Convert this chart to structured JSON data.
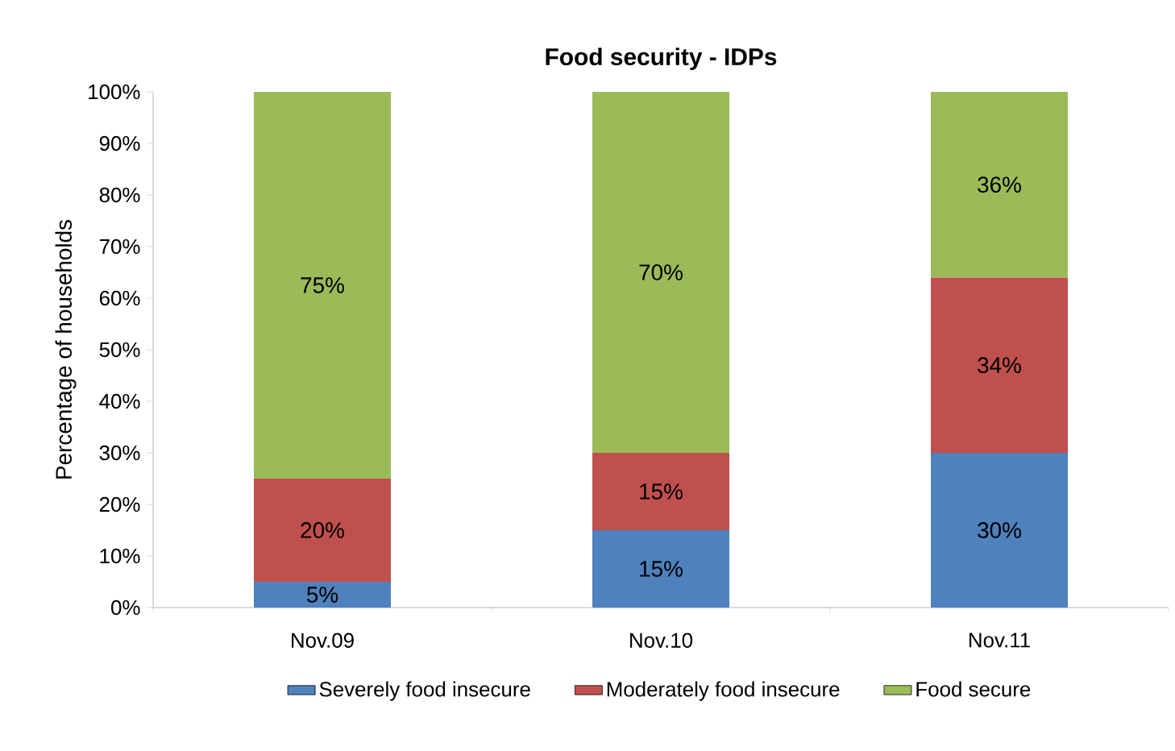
{
  "chart_data": {
    "type": "bar",
    "stacked": true,
    "title": "Food security - IDPs",
    "ylabel": "Percentage of households",
    "categories": [
      "Nov.09",
      "Nov.10",
      "Nov.11"
    ],
    "series": [
      {
        "name": "Severely food insecure",
        "color": "#4f81bd",
        "values": [
          5,
          15,
          30
        ],
        "value_labels": [
          "5%",
          "15%",
          "30%"
        ]
      },
      {
        "name": "Moderately food insecure",
        "color": "#c0504d",
        "values": [
          20,
          15,
          34
        ],
        "value_labels": [
          "20%",
          "15%",
          "34%"
        ]
      },
      {
        "name": "Food secure",
        "color": "#9bbb59",
        "values": [
          75,
          70,
          36
        ],
        "value_labels": [
          "75%",
          "70%",
          "36%"
        ]
      }
    ],
    "ylim": [
      0,
      100
    ],
    "yticks": [
      {
        "value": 0,
        "label": "0%"
      },
      {
        "value": 10,
        "label": "10%"
      },
      {
        "value": 20,
        "label": "20%"
      },
      {
        "value": 30,
        "label": "30%"
      },
      {
        "value": 40,
        "label": "40%"
      },
      {
        "value": 50,
        "label": "50%"
      },
      {
        "value": 60,
        "label": "60%"
      },
      {
        "value": 70,
        "label": "70%"
      },
      {
        "value": 80,
        "label": "80%"
      },
      {
        "value": 90,
        "label": "90%"
      },
      {
        "value": 100,
        "label": "100%"
      }
    ],
    "grid": false,
    "legend": "bottom"
  }
}
